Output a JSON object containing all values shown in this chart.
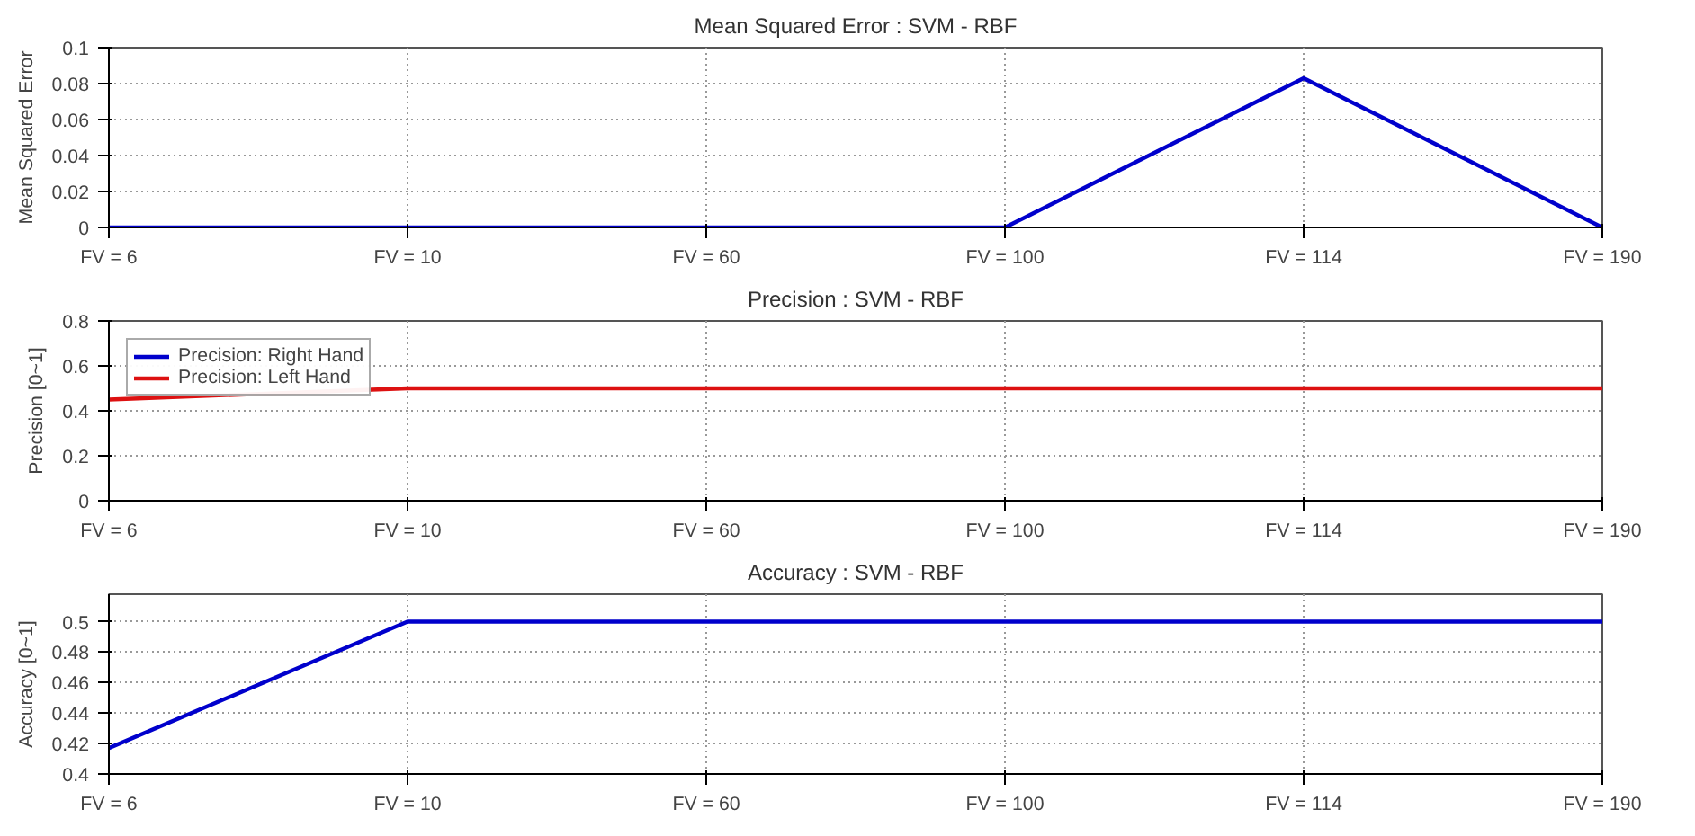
{
  "chart_data": [
    {
      "type": "line",
      "title": "Mean Squared Error : SVM - RBF",
      "ylabel": "Mean Squared Error",
      "categories": [
        "FV = 6",
        "FV = 10",
        "FV = 60",
        "FV = 100",
        "FV = 114",
        "FV = 190"
      ],
      "series": [
        {
          "color": "#0000cc",
          "values": [
            0,
            0,
            0,
            0,
            0.083,
            0
          ]
        }
      ],
      "ylim": [
        0,
        0.1
      ],
      "yticks": [
        0,
        0.02,
        0.04,
        0.06,
        0.08,
        0.1
      ],
      "grid": true,
      "legend": false
    },
    {
      "type": "line",
      "title": "Precision : SVM - RBF",
      "ylabel": "Precision [0~1]",
      "categories": [
        "FV = 6",
        "FV = 10",
        "FV = 60",
        "FV = 100",
        "FV = 114",
        "FV = 190"
      ],
      "series": [
        {
          "name": "Precision: Right Hand",
          "color": "#0000cc",
          "values": [
            null,
            null,
            null,
            null,
            null,
            null
          ]
        },
        {
          "name": "Precision: Left Hand",
          "color": "#dd1111",
          "values": [
            0.45,
            0.5,
            0.5,
            0.5,
            0.5,
            0.5
          ]
        }
      ],
      "ylim": [
        0,
        0.8
      ],
      "yticks": [
        0,
        0.2,
        0.4,
        0.6,
        0.8
      ],
      "grid": true,
      "legend": "top left"
    },
    {
      "type": "line",
      "title": "Accuracy : SVM - RBF",
      "ylabel": "Accuracy [0~1]",
      "categories": [
        "FV = 6",
        "FV = 10",
        "FV = 60",
        "FV = 100",
        "FV = 114",
        "FV = 190"
      ],
      "series": [
        {
          "color": "#0000cc",
          "values": [
            0.417,
            0.5,
            0.5,
            0.5,
            0.5,
            0.5
          ]
        }
      ],
      "ylim": [
        0.4,
        0.518
      ],
      "yticks": [
        0.4,
        0.42,
        0.44,
        0.46,
        0.48,
        0.5
      ],
      "grid": true,
      "legend": false
    }
  ]
}
